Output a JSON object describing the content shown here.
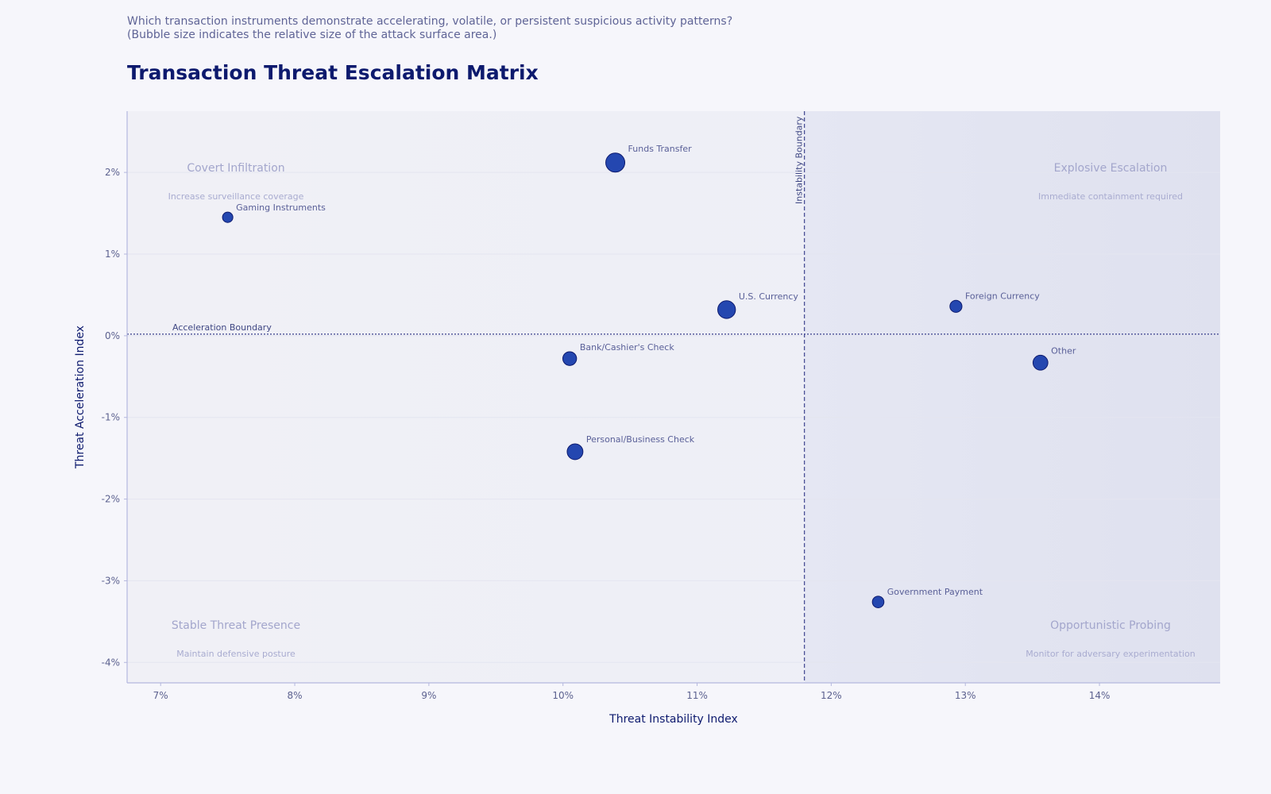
{
  "subtitle": {
    "line1": "Which transaction instruments demonstrate accelerating, volatile, or persistent suspicious activity patterns?",
    "line2": "(Bubble size indicates the relative size of the attack surface area.)"
  },
  "title": "Transaction Threat Escalation Matrix",
  "colors": {
    "bubble_fill": "#2447b0",
    "bubble_stroke": "#0d1a6e",
    "reference_line": "#4a4f96",
    "high_instability_zone": "#e2e4f1"
  },
  "chart_data": {
    "type": "scatter",
    "xlabel": "Threat Instability Index",
    "ylabel": "Threat Acceleration Index",
    "xlim": [
      6.75,
      14.9
    ],
    "ylim": [
      -4.25,
      2.75
    ],
    "x_ticks": [
      7,
      8,
      9,
      10,
      11,
      12,
      13,
      14
    ],
    "x_tick_labels": [
      "7%",
      "8%",
      "9%",
      "10%",
      "11%",
      "12%",
      "13%",
      "14%"
    ],
    "y_ticks": [
      2,
      1,
      0,
      -1,
      -2,
      -3,
      -4
    ],
    "y_tick_labels": [
      "2%",
      "1%",
      "0%",
      "-1%",
      "-2%",
      "-3%",
      "-4%"
    ],
    "grid": true,
    "points": [
      {
        "label": "Funds Transfer",
        "x": 10.39,
        "y": 2.12,
        "size": 1.0
      },
      {
        "label": "Gaming Instruments",
        "x": 7.5,
        "y": 1.45,
        "size": 0.1
      },
      {
        "label": "U.S. Currency",
        "x": 11.22,
        "y": 0.32,
        "size": 0.8
      },
      {
        "label": "Foreign Currency",
        "x": 12.93,
        "y": 0.36,
        "size": 0.2
      },
      {
        "label": "Bank/Cashier's Check",
        "x": 10.05,
        "y": -0.28,
        "size": 0.34
      },
      {
        "label": "Other",
        "x": 13.56,
        "y": -0.33,
        "size": 0.45
      },
      {
        "label": "Personal/Business Check",
        "x": 10.09,
        "y": -1.42,
        "size": 0.55
      },
      {
        "label": "Government Payment",
        "x": 12.35,
        "y": -3.26,
        "size": 0.17
      }
    ],
    "reference_lines": {
      "vertical": {
        "x": 11.8,
        "label": "Instability Boundary"
      },
      "horizontal": {
        "y": 0.02,
        "label": "Acceleration Boundary"
      }
    },
    "quadrants": [
      {
        "id": "top-left",
        "title": "Covert Infiltration",
        "desc": "Increase surveillance coverage"
      },
      {
        "id": "top-right",
        "title": "Explosive Escalation",
        "desc": "Immediate containment required"
      },
      {
        "id": "bottom-left",
        "title": "Stable Threat Presence",
        "desc": "Maintain defensive posture"
      },
      {
        "id": "bottom-right",
        "title": "Opportunistic Probing",
        "desc": "Monitor for adversary experimentation"
      }
    ]
  }
}
